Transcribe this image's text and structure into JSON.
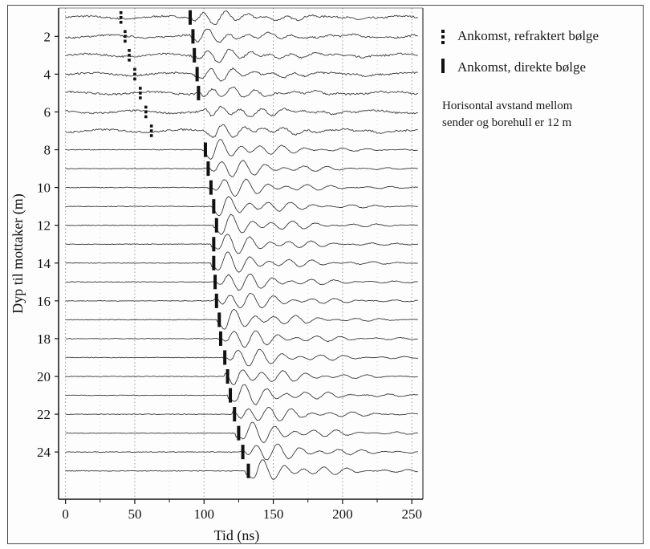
{
  "chart_data": {
    "type": "line",
    "ylabel": "Dyp til mottaker (m)",
    "xlabel": "Tid (ns)",
    "xlim": [
      -5,
      258
    ],
    "ylim": [
      0.5,
      26.5
    ],
    "y_inverted": true,
    "x_ticks": [
      0,
      50,
      100,
      150,
      200,
      250
    ],
    "y_ticks": [
      2,
      4,
      6,
      8,
      10,
      12,
      14,
      16,
      18,
      20,
      22,
      24
    ],
    "grid": "vertical dotted lines",
    "traces_depths_m": [
      1,
      2,
      3,
      4,
      5,
      6,
      7,
      8,
      9,
      10,
      11,
      12,
      13,
      14,
      15,
      16,
      17,
      18,
      19,
      20,
      21,
      22,
      23,
      24,
      25
    ],
    "arrival_refracted": [
      {
        "depth": 1,
        "time": 40
      },
      {
        "depth": 2,
        "time": 43
      },
      {
        "depth": 3,
        "time": 46
      },
      {
        "depth": 4,
        "time": 50
      },
      {
        "depth": 5,
        "time": 54
      },
      {
        "depth": 6,
        "time": 58
      },
      {
        "depth": 7,
        "time": 62
      }
    ],
    "arrival_direct": [
      {
        "depth": 1,
        "time": 90
      },
      {
        "depth": 2,
        "time": 92
      },
      {
        "depth": 3,
        "time": 93
      },
      {
        "depth": 4,
        "time": 95
      },
      {
        "depth": 5,
        "time": 96
      },
      {
        "depth": 8,
        "time": 101
      },
      {
        "depth": 9,
        "time": 103
      },
      {
        "depth": 10,
        "time": 105
      },
      {
        "depth": 11,
        "time": 107
      },
      {
        "depth": 12,
        "time": 109
      },
      {
        "depth": 13,
        "time": 107
      },
      {
        "depth": 14,
        "time": 107
      },
      {
        "depth": 15,
        "time": 108
      },
      {
        "depth": 16,
        "time": 109
      },
      {
        "depth": 17,
        "time": 111
      },
      {
        "depth": 18,
        "time": 112
      },
      {
        "depth": 19,
        "time": 115
      },
      {
        "depth": 20,
        "time": 117
      },
      {
        "depth": 21,
        "time": 119
      },
      {
        "depth": 22,
        "time": 122
      },
      {
        "depth": 23,
        "time": 125
      },
      {
        "depth": 24,
        "time": 128
      },
      {
        "depth": 25,
        "time": 132
      }
    ],
    "legend": [
      {
        "style": "dotted",
        "label": "Ankomst, refraktert bølge"
      },
      {
        "style": "solid",
        "label": "Ankomst, direkte bølge"
      }
    ],
    "legend_position": "top-right",
    "annotation": [
      "Horisontal avstand mellom",
      "sender og borehull er 12 m"
    ]
  },
  "legend": {
    "refracted": "Ankomst, refraktert bølge",
    "direct": "Ankomst, direkte bølge"
  },
  "note": {
    "line1": "Horisontal avstand mellom",
    "line2": "sender og borehull er 12 m"
  },
  "colors": {
    "trace": "#3a3a3a",
    "axis": "#111111",
    "grid": "#9a9a9a"
  }
}
